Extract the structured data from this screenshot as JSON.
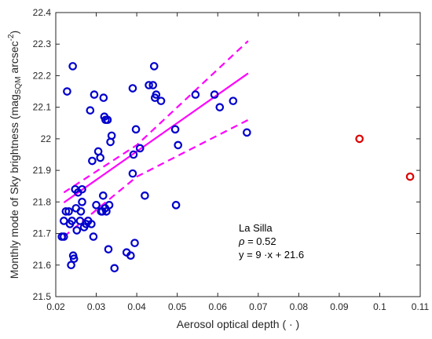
{
  "chart_data": {
    "type": "scatter",
    "xlabel": "Aerosol optical depth ( · )",
    "ylabel": "Monthly mode of Sky brightness (mag",
    "ylabel_sub": "SQM",
    "ylabel_unit": " arcsec",
    "ylabel_sup": "-2",
    "ylabel_close": ")",
    "xlim": [
      0.02,
      0.11
    ],
    "ylim": [
      21.5,
      22.4
    ],
    "xticks": [
      0.02,
      0.03,
      0.04,
      0.05,
      0.06,
      0.07,
      0.08,
      0.09,
      0.1,
      0.11
    ],
    "xtick_labels": [
      "0.02",
      "0.03",
      "0.04",
      "0.05",
      "0.06",
      "0.07",
      "0.08",
      "0.09",
      "0.1",
      "0.11"
    ],
    "yticks": [
      21.5,
      21.6,
      21.7,
      21.8,
      21.9,
      22.0,
      22.1,
      22.2,
      22.3,
      22.4
    ],
    "ytick_labels": [
      "21.5",
      "21.6",
      "21.7",
      "21.8",
      "21.9",
      "22",
      "22.1",
      "22.2",
      "22.3",
      "22.4"
    ],
    "grid": false,
    "colors": {
      "points": "#0000cc",
      "outliers": "#dd0000",
      "fit": "#ff00ff",
      "axes": "#262626"
    },
    "series": [
      {
        "points": [
          [
            0.0215,
            21.69
          ],
          [
            0.022,
            21.69
          ],
          [
            0.022,
            21.74
          ],
          [
            0.0225,
            21.77
          ],
          [
            0.0228,
            22.15
          ],
          [
            0.0232,
            21.77
          ],
          [
            0.0235,
            21.73
          ],
          [
            0.0238,
            21.6
          ],
          [
            0.024,
            21.74
          ],
          [
            0.0242,
            22.23
          ],
          [
            0.0243,
            21.63
          ],
          [
            0.0245,
            21.62
          ],
          [
            0.0248,
            21.84
          ],
          [
            0.025,
            21.78
          ],
          [
            0.0252,
            21.71
          ],
          [
            0.0255,
            21.83
          ],
          [
            0.026,
            21.74
          ],
          [
            0.0262,
            21.77
          ],
          [
            0.0265,
            21.84
          ],
          [
            0.0265,
            21.8
          ],
          [
            0.027,
            21.72
          ],
          [
            0.0275,
            21.73
          ],
          [
            0.028,
            21.74
          ],
          [
            0.0285,
            22.09
          ],
          [
            0.0288,
            21.73
          ],
          [
            0.029,
            21.93
          ],
          [
            0.0293,
            21.69
          ],
          [
            0.0295,
            22.14
          ],
          [
            0.03,
            21.79
          ],
          [
            0.0305,
            21.96
          ],
          [
            0.031,
            21.94
          ],
          [
            0.0312,
            21.77
          ],
          [
            0.0315,
            21.77
          ],
          [
            0.0317,
            21.82
          ],
          [
            0.0318,
            22.13
          ],
          [
            0.032,
            22.07
          ],
          [
            0.0322,
            21.78
          ],
          [
            0.0323,
            22.06
          ],
          [
            0.0325,
            21.77
          ],
          [
            0.0328,
            22.06
          ],
          [
            0.033,
            21.65
          ],
          [
            0.0332,
            21.79
          ],
          [
            0.0335,
            21.99
          ],
          [
            0.0338,
            22.01
          ],
          [
            0.0345,
            21.59
          ],
          [
            0.0375,
            21.64
          ],
          [
            0.0385,
            21.63
          ],
          [
            0.039,
            21.89
          ],
          [
            0.039,
            22.16
          ],
          [
            0.0392,
            21.95
          ],
          [
            0.0395,
            21.67
          ],
          [
            0.0398,
            22.03
          ],
          [
            0.0408,
            21.97
          ],
          [
            0.042,
            21.82
          ],
          [
            0.043,
            22.17
          ],
          [
            0.044,
            22.17
          ],
          [
            0.0443,
            22.23
          ],
          [
            0.0445,
            22.13
          ],
          [
            0.0448,
            22.14
          ],
          [
            0.046,
            22.12
          ],
          [
            0.0495,
            22.03
          ],
          [
            0.0497,
            21.79
          ],
          [
            0.0502,
            21.98
          ],
          [
            0.0545,
            22.14
          ],
          [
            0.0592,
            22.14
          ],
          [
            0.0605,
            22.1
          ],
          [
            0.0638,
            22.12
          ],
          [
            0.0672,
            22.02
          ]
        ]
      },
      {
        "points": [
          [
            0.095,
            22.0
          ],
          [
            0.1075,
            21.88
          ]
        ]
      }
    ],
    "fit": {
      "slope": 9,
      "intercept": 21.6,
      "x_range": [
        0.022,
        0.0675
      ],
      "ci_upper": [
        [
          0.022,
          21.83
        ],
        [
          0.04,
          21.98
        ],
        [
          0.0675,
          22.31
        ]
      ],
      "ci_lower": [
        [
          0.022,
          21.69
        ],
        [
          0.04,
          21.88
        ],
        [
          0.0675,
          22.06
        ]
      ]
    },
    "annotation": {
      "site": "La Silla",
      "rho_symbol": "ρ",
      "rho_value": " = 0.52",
      "equation": "y = 9 ·x + 21.6"
    }
  }
}
